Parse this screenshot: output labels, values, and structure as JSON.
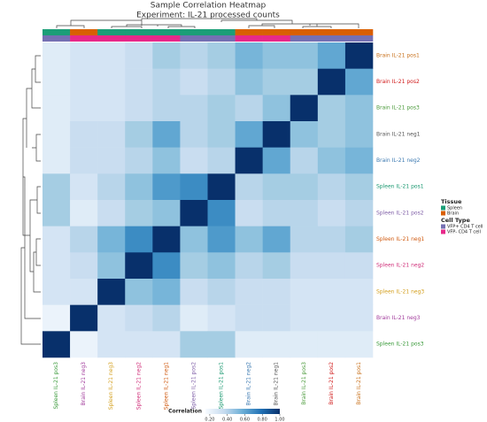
{
  "chart_data": {
    "type": "heatmap",
    "title": "Sample Correlation Heatmap",
    "subtitle": "Experiment: IL-21 processed counts",
    "colormap": "Blues",
    "x": [
      "Spleen IL-21 pos3",
      "Brain IL-21 neg3",
      "Spleen IL-21 neg3",
      "Spleen IL-21 neg2",
      "Spleen IL-21 neg1",
      "Spleen IL-21 pos2",
      "Spleen IL-21 pos1",
      "Brain IL-21 neg2",
      "Brain IL-21 neg1",
      "Brain IL-21 pos3",
      "Brain IL-21 pos2",
      "Brain IL-21 pos1"
    ],
    "x_label_colors": [
      "#3a9a3a",
      "#a0389a",
      "#d4a020",
      "#d0307a",
      "#d05a10",
      "#8060a8",
      "#1a9870",
      "#3a78b0",
      "#555555",
      "#4a9a3a",
      "#d01818",
      "#c8701a"
    ],
    "y": [
      "Brain IL-21 pos1",
      "Brain IL-21 pos2",
      "Brain IL-21 pos3",
      "Brain IL-21 neg1",
      "Brain IL-21 neg2",
      "Spleen IL-21 pos1",
      "Spleen IL-21 pos2",
      "Spleen IL-21 neg1",
      "Spleen IL-21 neg2",
      "Spleen IL-21 neg3",
      "Brain IL-21 neg3",
      "Spleen IL-21 pos3"
    ],
    "y_label_colors": [
      "#c8701a",
      "#d01818",
      "#4a9a3a",
      "#555555",
      "#3a78b0",
      "#1a9870",
      "#8060a8",
      "#d05a10",
      "#d0307a",
      "#d4a020",
      "#a0389a",
      "#3a9a3a"
    ],
    "values": [
      [
        0.25,
        0.3,
        0.3,
        0.35,
        0.45,
        0.4,
        0.45,
        0.55,
        0.5,
        0.5,
        0.6,
        1
      ],
      [
        0.25,
        0.3,
        0.3,
        0.35,
        0.4,
        0.35,
        0.4,
        0.5,
        0.45,
        0.45,
        1,
        0.6
      ],
      [
        0.25,
        0.3,
        0.3,
        0.35,
        0.4,
        0.4,
        0.45,
        0.4,
        0.5,
        1,
        0.45,
        0.5
      ],
      [
        0.25,
        0.35,
        0.35,
        0.45,
        0.6,
        0.4,
        0.45,
        0.6,
        1,
        0.5,
        0.45,
        0.5
      ],
      [
        0.25,
        0.35,
        0.35,
        0.4,
        0.5,
        0.35,
        0.4,
        1,
        0.6,
        0.4,
        0.5,
        0.55
      ],
      [
        0.45,
        0.3,
        0.4,
        0.5,
        0.65,
        0.7,
        1,
        0.4,
        0.45,
        0.45,
        0.4,
        0.45
      ],
      [
        0.45,
        0.25,
        0.35,
        0.45,
        0.5,
        1,
        0.7,
        0.35,
        0.4,
        0.4,
        0.35,
        0.4
      ],
      [
        0.3,
        0.4,
        0.55,
        0.7,
        1,
        0.5,
        0.65,
        0.5,
        0.6,
        0.4,
        0.4,
        0.45
      ],
      [
        0.3,
        0.35,
        0.5,
        1,
        0.7,
        0.45,
        0.5,
        0.4,
        0.45,
        0.35,
        0.35,
        0.35
      ],
      [
        0.3,
        0.3,
        1,
        0.5,
        0.55,
        0.35,
        0.4,
        0.35,
        0.35,
        0.3,
        0.3,
        0.3
      ],
      [
        0.2,
        1,
        0.3,
        0.35,
        0.4,
        0.25,
        0.3,
        0.35,
        0.35,
        0.3,
        0.3,
        0.3
      ],
      [
        1,
        0.2,
        0.3,
        0.3,
        0.3,
        0.45,
        0.45,
        0.25,
        0.25,
        0.25,
        0.25,
        0.25
      ]
    ],
    "legend": [
      {
        "title": "Tissue",
        "items": [
          {
            "label": "Spleen",
            "color": "#1b9e77"
          },
          {
            "label": "Brain",
            "color": "#d95f02"
          }
        ]
      },
      {
        "title": "Cell Type",
        "items": [
          {
            "label": "VFP+ CD4 T cell",
            "color": "#7570b3"
          },
          {
            "label": "VFP- CD4 T cell",
            "color": "#e7298a"
          }
        ]
      }
    ],
    "col_annotations": [
      [
        0,
        1,
        0,
        0,
        0,
        0,
        0,
        1,
        1,
        1,
        1,
        1
      ],
      [
        0,
        1,
        1,
        1,
        1,
        0,
        0,
        1,
        1,
        0,
        0,
        0
      ]
    ],
    "colorbar": {
      "label": "Correlation",
      "lim": [
        0.15,
        1
      ],
      "ticks": [
        {
          "value": 0.2,
          "label": "0.20"
        },
        {
          "value": 0.4,
          "label": "0.40"
        },
        {
          "value": 0.6,
          "label": "0.60"
        },
        {
          "value": 0.8,
          "label": "0.80"
        },
        {
          "value": 1,
          "label": "1.00"
        }
      ]
    }
  }
}
